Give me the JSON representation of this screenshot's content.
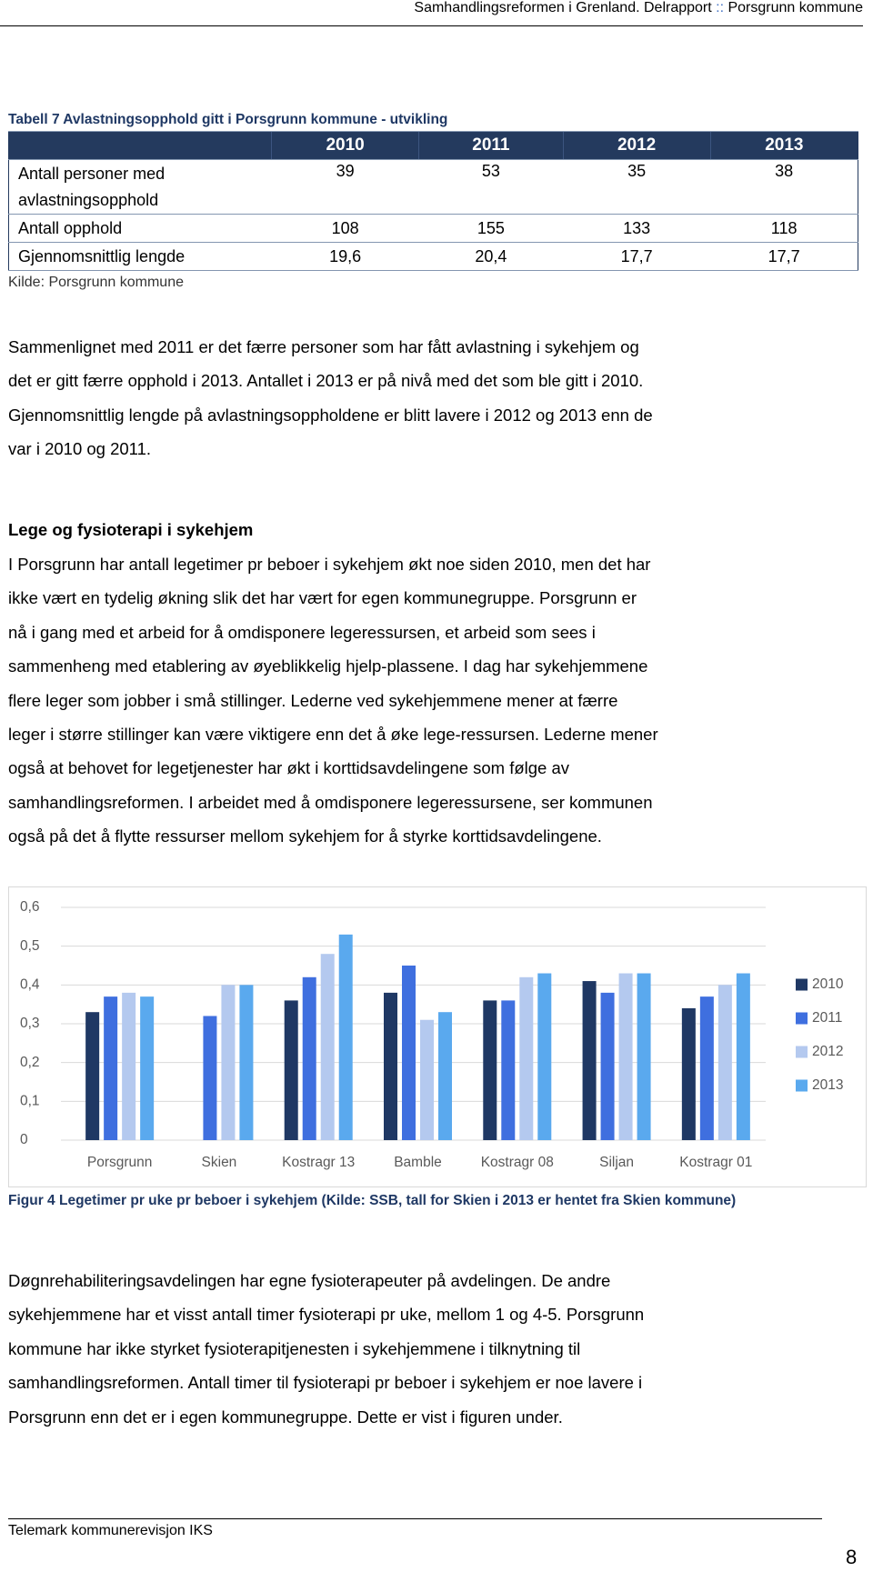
{
  "header": {
    "title": "Samhandlingsreformen i Grenland. Delrapport",
    "separator": "::",
    "subtitle": "Porsgrunn kommune"
  },
  "table": {
    "caption": "Tabell 7 Avlastningsopphold gitt i Porsgrunn kommune - utvikling",
    "columns": [
      "2010",
      "2011",
      "2012",
      "2013"
    ],
    "rows": [
      {
        "label": [
          "Antall personer med",
          "avlastningsopphold"
        ],
        "values": [
          "39",
          "53",
          "35",
          "38"
        ]
      },
      {
        "label": [
          "Antall opphold"
        ],
        "values": [
          "108",
          "155",
          "133",
          "118"
        ]
      },
      {
        "label": [
          "Gjennomsnittlig lengde"
        ],
        "values": [
          "19,6",
          "20,4",
          "17,7",
          "17,7"
        ]
      }
    ],
    "source": "Kilde: Porsgrunn kommune"
  },
  "paragraph_1": [
    "Sammenlignet med 2011 er det færre personer som har fått avlastning i sykehjem og",
    "det er gitt færre opphold i 2013. Antallet i 2013 er på nivå med det som ble gitt i 2010.",
    "Gjennomsnittlig lengde på avlastningsoppholdene er blitt lavere i 2012 og 2013 enn de",
    "var i 2010 og 2011."
  ],
  "section": {
    "heading": "Lege og fysioterapi i sykehjem",
    "lines": [
      "I Porsgrunn har antall legetimer pr beboer i sykehjem økt noe siden 2010, men det har",
      "ikke vært en tydelig økning slik det har vært for egen kommunegruppe. Porsgrunn er",
      "nå i gang med et arbeid for å omdisponere legeressursen, et arbeid som sees i",
      "sammenheng med etablering av øyeblikkelig hjelp-plassene. I dag har sykehjemmene",
      "flere leger som jobber i små stillinger. Lederne ved sykehjemmene mener at færre",
      "leger i større stillinger kan være viktigere enn det å øke lege-ressursen. Lederne mener",
      "også at behovet for legetjenester har økt i korttidsavdelingene som følge av",
      "samhandlingsreformen. I arbeidet med å omdisponere legeressursene, ser kommunen",
      "også på det å flytte ressurser mellom sykehjem for å styrke korttidsavdelingene."
    ]
  },
  "chart": {
    "type": "bar",
    "categories": [
      "Porsgrunn",
      "Skien",
      "Kostragr 13",
      "Bamble",
      "Kostragr 08",
      "Siljan",
      "Kostragr 01"
    ],
    "series": [
      {
        "name": "2010",
        "color": "#1f3864",
        "values": [
          0.33,
          null,
          0.36,
          0.38,
          0.36,
          0.41,
          0.34
        ]
      },
      {
        "name": "2011",
        "color": "#3f6fdf",
        "values": [
          0.37,
          0.32,
          0.42,
          0.45,
          0.36,
          0.38,
          0.37
        ]
      },
      {
        "name": "2012",
        "color": "#b4c9ef",
        "values": [
          0.38,
          0.4,
          0.48,
          0.31,
          0.42,
          0.43,
          0.4
        ]
      },
      {
        "name": "2013",
        "color": "#5aa9ee",
        "values": [
          0.37,
          0.4,
          0.53,
          0.33,
          0.43,
          0.43,
          0.43
        ]
      }
    ],
    "ylim": [
      0,
      0.6
    ],
    "yticks": [
      0,
      {
        "value": 0.1,
        "label": "0,1"
      },
      {
        "value": 0.2,
        "label": "0,2"
      },
      {
        "value": 0.3,
        "label": "0,3"
      },
      {
        "value": 0.4,
        "label": "0,4"
      },
      {
        "value": 0.5,
        "label": "0,5"
      },
      {
        "value": 0.6,
        "label": "0,6"
      }
    ],
    "grid": true,
    "legend": "right"
  },
  "figure_caption": "Figur 4 Legetimer pr uke pr beboer i sykehjem (Kilde: SSB, tall for Skien i 2013 er hentet fra Skien kommune)",
  "paragraph_3": [
    "Døgnrehabiliteringsavdelingen har egne fysioterapeuter på avdelingen. De andre",
    "sykehjemmene har et visst antall timer fysioterapi pr uke, mellom 1 og 4-5.  Porsgrunn",
    "kommune har ikke styrket fysioterapitjenesten i sykehjemmene i tilknytning til",
    "samhandlingsreformen. Antall timer til fysioterapi pr beboer i sykehjem er noe lavere i",
    "Porsgrunn enn det er i egen kommunegruppe. Dette er vist i figuren under."
  ],
  "footer": {
    "text": "Telemark kommunerevisjon IKS",
    "page": "8"
  }
}
